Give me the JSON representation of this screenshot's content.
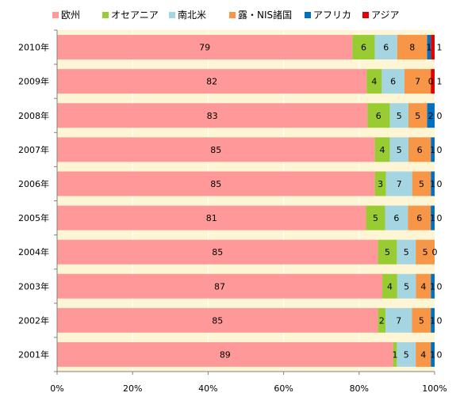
{
  "chart_data": {
    "type": "bar",
    "orientation": "horizontal",
    "stacked": true,
    "normalized": true,
    "categories": [
      "2010年",
      "2009年",
      "2008年",
      "2007年",
      "2006年",
      "2005年",
      "2004年",
      "2003年",
      "2002年",
      "2001年"
    ],
    "series": [
      {
        "name": "欧州",
        "color": "#ff9999",
        "values": [
          79,
          82,
          83,
          85,
          85,
          81,
          85,
          87,
          85,
          89
        ]
      },
      {
        "name": "オセアニア",
        "color": "#99cc33",
        "values": [
          6,
          4,
          6,
          4,
          3,
          5,
          5,
          4,
          2,
          1
        ]
      },
      {
        "name": "南北米",
        "color": "#a6d5e2",
        "values": [
          6,
          6,
          5,
          5,
          7,
          6,
          5,
          5,
          7,
          5
        ]
      },
      {
        "name": "露・NIS諸国",
        "color": "#f79646",
        "values": [
          8,
          7,
          5,
          6,
          5,
          6,
          5,
          4,
          5,
          4
        ]
      },
      {
        "name": "アフリカ",
        "color": "#0070c0",
        "values": [
          1,
          0,
          2,
          1,
          1,
          1,
          0,
          1,
          1,
          1
        ]
      },
      {
        "name": "アジア",
        "color": "#e00000",
        "values": [
          1,
          1,
          0,
          0,
          0,
          0,
          0,
          0,
          0,
          0
        ]
      }
    ],
    "data_labels": [
      [
        "79",
        "6",
        "6",
        "8",
        "1",
        "1"
      ],
      [
        "82",
        "4",
        "6",
        "7",
        "0",
        "1"
      ],
      [
        "83",
        "6",
        "5",
        "5",
        "2",
        "0"
      ],
      [
        "85",
        "4",
        "5",
        "6",
        "1",
        "0"
      ],
      [
        "85",
        "3",
        "7",
        "5",
        "1",
        "0"
      ],
      [
        "81",
        "5",
        "6",
        "6",
        "1",
        "0"
      ],
      [
        "85",
        "5",
        "5",
        "5",
        "0",
        ""
      ],
      [
        "87",
        "4",
        "5",
        "4",
        "1",
        "0"
      ],
      [
        "85",
        "2",
        "7",
        "5",
        "1",
        "0"
      ],
      [
        "89",
        "1",
        "5",
        "4",
        "1",
        "0"
      ]
    ],
    "x_ticks": [
      "0%",
      "20%",
      "40%",
      "60%",
      "80%",
      "100%"
    ],
    "xlim": [
      0,
      100
    ],
    "legend_position": "top",
    "plot_background": "#fdf5d3",
    "grid": "vertical"
  }
}
